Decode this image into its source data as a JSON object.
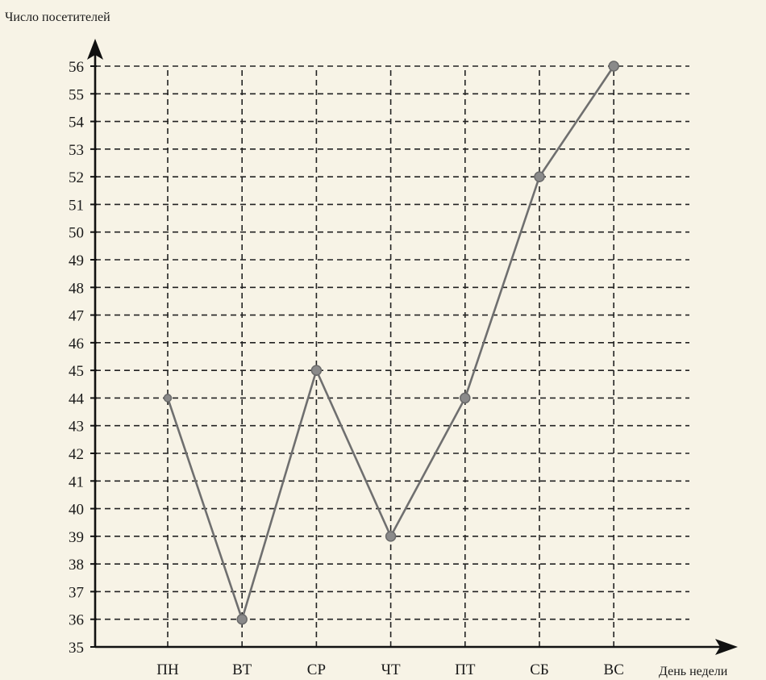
{
  "chart_data": {
    "type": "line",
    "ylabel": "Число посетителей",
    "xlabel": "День недели",
    "categories": [
      "ПН",
      "ВТ",
      "СР",
      "ЧТ",
      "ПТ",
      "СБ",
      "ВС"
    ],
    "values": [
      44,
      36,
      45,
      39,
      44,
      52,
      56
    ],
    "ylim": [
      35,
      56
    ],
    "yticks": [
      35,
      36,
      37,
      38,
      39,
      40,
      41,
      42,
      43,
      44,
      45,
      46,
      47,
      48,
      49,
      50,
      51,
      52,
      53,
      54,
      55,
      56
    ],
    "grid": true,
    "grid_style": "dashed",
    "colors": {
      "line": "#6f6f6f",
      "point": "#8a8a8a",
      "axis": "#111111",
      "grid": "#222222",
      "background": "#f7f3e6"
    }
  }
}
